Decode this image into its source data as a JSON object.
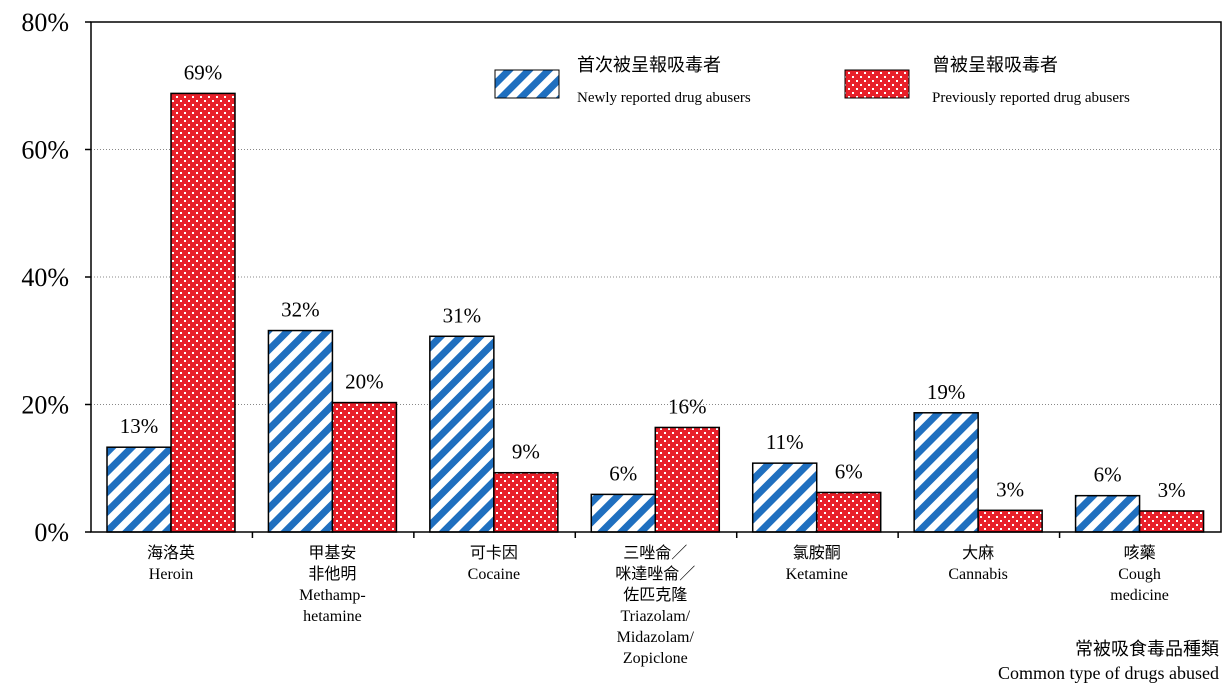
{
  "chart_data": {
    "type": "bar",
    "categories": [
      [
        "海洛英",
        "Heroin"
      ],
      [
        "甲基安",
        "非他明",
        "Methamp-",
        "hetamine"
      ],
      [
        "可卡因",
        "Cocaine"
      ],
      [
        "三唑侖／",
        "咪達唑侖／",
        "佐匹克隆",
        "Triazolam/",
        "Midazolam/",
        "Zopiclone"
      ],
      [
        "氯胺酮",
        "Ketamine"
      ],
      [
        "大麻",
        "Cannabis"
      ],
      [
        "咳藥",
        "Cough",
        "medicine"
      ]
    ],
    "series": [
      {
        "name": [
          "首次被呈報吸毒者",
          "Newly reported drug abusers"
        ],
        "values": [
          13.3,
          31.6,
          30.7,
          5.9,
          10.8,
          18.7,
          5.7
        ],
        "labels": [
          "13%",
          "32%",
          "31%",
          "6%",
          "11%",
          "19%",
          "6%"
        ],
        "color": "#1f6fbf",
        "pattern": "diagonal-stripes"
      },
      {
        "name": [
          "曾被呈報吸毒者",
          "Previously reported drug abusers"
        ],
        "values": [
          68.8,
          20.3,
          9.3,
          16.4,
          6.2,
          3.4,
          3.3
        ],
        "labels": [
          "69%",
          "20%",
          "9%",
          "16%",
          "6%",
          "3%",
          "3%"
        ],
        "color": "#e8202a",
        "pattern": "cross-hatch"
      }
    ],
    "ylim": [
      0,
      80
    ],
    "yticks": [
      "0%",
      "20%",
      "40%",
      "60%",
      "80%"
    ],
    "xlabel": [
      "常被吸食毒品種類",
      "Common type of drugs abused"
    ],
    "ylabel": "",
    "grid": "horizontal-dotted",
    "legend_position": "top-right"
  }
}
